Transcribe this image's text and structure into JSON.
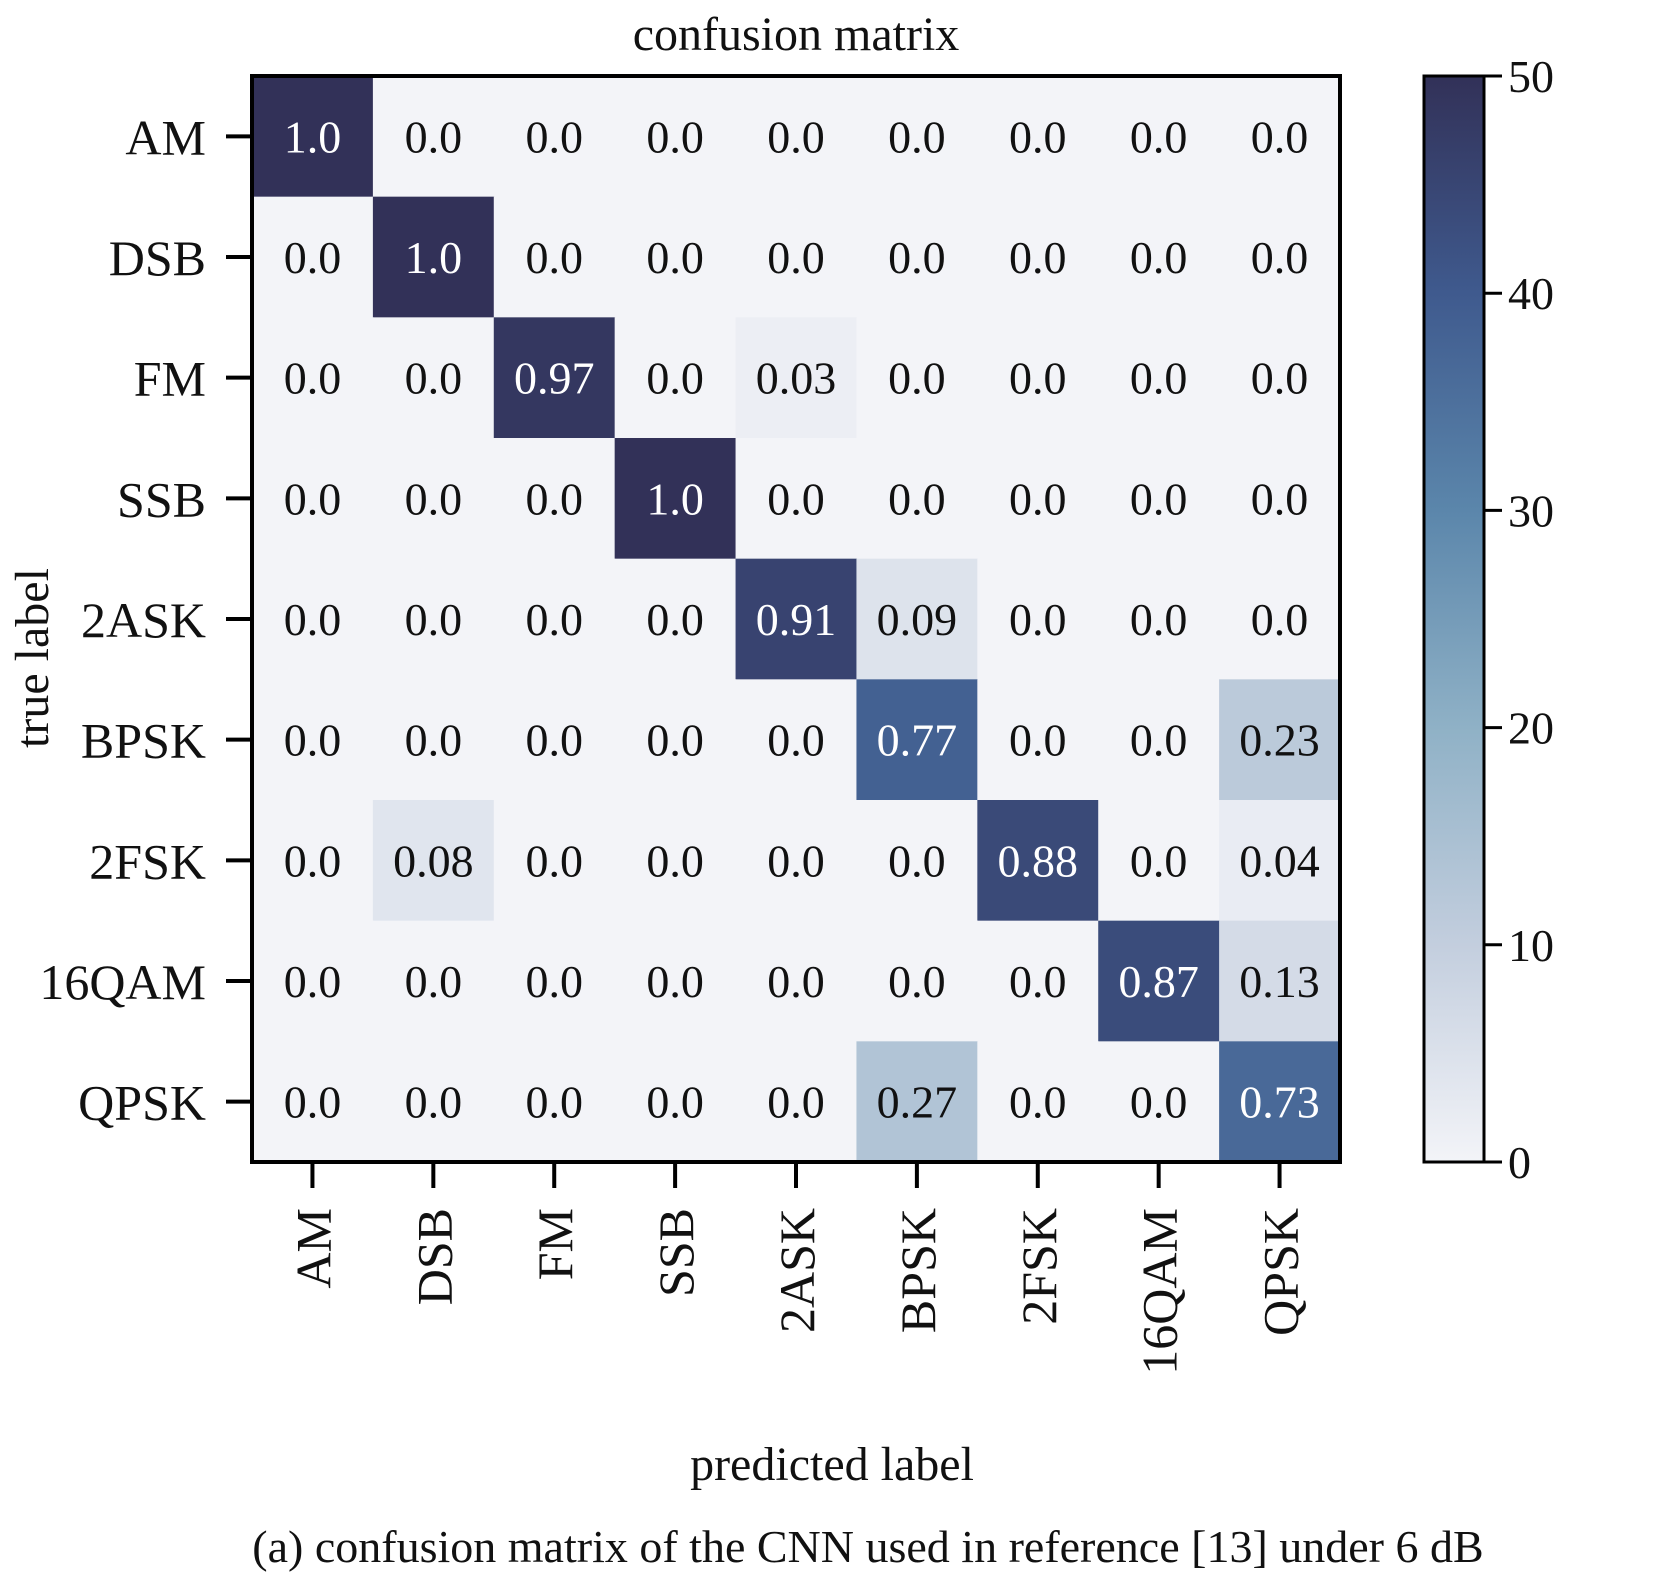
{
  "chart_data": {
    "type": "heatmap",
    "title": "confusion matrix",
    "xlabel": "predicted label",
    "ylabel": "true label",
    "x_categories": [
      "AM",
      "DSB",
      "FM",
      "SSB",
      "2ASK",
      "BPSK",
      "2FSK",
      "16QAM",
      "QPSK"
    ],
    "y_categories": [
      "AM",
      "DSB",
      "FM",
      "SSB",
      "2ASK",
      "BPSK",
      "2FSK",
      "16QAM",
      "QPSK"
    ],
    "cells": [
      [
        "1.0",
        "0.0",
        "0.0",
        "0.0",
        "0.0",
        "0.0",
        "0.0",
        "0.0",
        "0.0"
      ],
      [
        "0.0",
        "1.0",
        "0.0",
        "0.0",
        "0.0",
        "0.0",
        "0.0",
        "0.0",
        "0.0"
      ],
      [
        "0.0",
        "0.0",
        "0.97",
        "0.0",
        "0.03",
        "0.0",
        "0.0",
        "0.0",
        "0.0"
      ],
      [
        "0.0",
        "0.0",
        "0.0",
        "1.0",
        "0.0",
        "0.0",
        "0.0",
        "0.0",
        "0.0"
      ],
      [
        "0.0",
        "0.0",
        "0.0",
        "0.0",
        "0.91",
        "0.09",
        "0.0",
        "0.0",
        "0.0"
      ],
      [
        "0.0",
        "0.0",
        "0.0",
        "0.0",
        "0.0",
        "0.77",
        "0.0",
        "0.0",
        "0.23"
      ],
      [
        "0.0",
        "0.08",
        "0.0",
        "0.0",
        "0.0",
        "0.0",
        "0.88",
        "0.0",
        "0.04"
      ],
      [
        "0.0",
        "0.0",
        "0.0",
        "0.0",
        "0.0",
        "0.0",
        "0.0",
        "0.87",
        "0.13"
      ],
      [
        "0.0",
        "0.0",
        "0.0",
        "0.0",
        "0.0",
        "0.27",
        "0.0",
        "0.0",
        "0.73"
      ]
    ],
    "colorbar": {
      "min": 0,
      "max": 50,
      "ticks": [
        "0",
        "10",
        "20",
        "30",
        "40",
        "50"
      ],
      "scale_factor": 50,
      "colors": [
        "#f3f4f8",
        "#c3cede",
        "#8fb1c6",
        "#5b86ab",
        "#3f5a8e",
        "#323158"
      ]
    },
    "caption": "(a) confusion matrix of the CNN used in reference [13] under 6 dB"
  }
}
